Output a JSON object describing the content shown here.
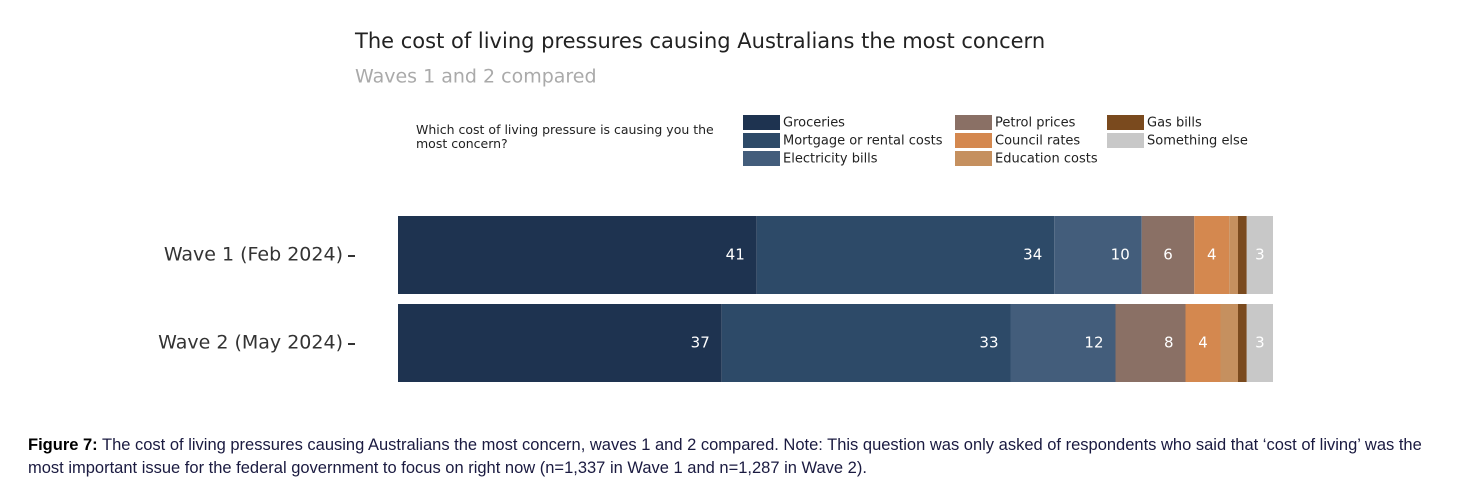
{
  "chart_data": {
    "type": "stacked-bar-horizontal",
    "title": "The cost of living pressures causing Australians the most concern",
    "subtitle": "Waves 1 and 2 compared",
    "legend_title": "Which cost of living pressure is causing you the most concern?",
    "categories": [
      "Wave 1 (Feb 2024)",
      "Wave 2 (May 2024)"
    ],
    "xlim": [
      0,
      100
    ],
    "series": [
      {
        "name": "Groceries",
        "color": "#1e3350",
        "values": [
          41,
          37
        ]
      },
      {
        "name": "Mortgage or rental costs",
        "color": "#2d4a68",
        "values": [
          34,
          33
        ]
      },
      {
        "name": "Electricity bills",
        "color": "#435d7b",
        "values": [
          10,
          12
        ]
      },
      {
        "name": "Petrol prices",
        "color": "#8a7065",
        "values": [
          6,
          8
        ]
      },
      {
        "name": "Council rates",
        "color": "#d4884f",
        "values": [
          4,
          4
        ]
      },
      {
        "name": "Education costs",
        "color": "#c5905f",
        "values": [
          1,
          2
        ]
      },
      {
        "name": "Gas bills",
        "color": "#7a4a1e",
        "values": [
          1,
          1
        ]
      },
      {
        "name": "Something else",
        "color": "#c8c8c8",
        "values": [
          3,
          3
        ]
      }
    ],
    "labelled_series": [
      0,
      1,
      2,
      3,
      4,
      7
    ]
  },
  "caption": {
    "label": "Figure 7:",
    "text": "The cost of living pressures causing Australians the most concern, waves 1 and 2 compared.  Note:  This question was only asked of respondents who said that ‘cost of living’ was the most important issue for the federal government to focus on right now (n=1,337 in Wave 1 and n=1,287 in Wave 2)."
  }
}
